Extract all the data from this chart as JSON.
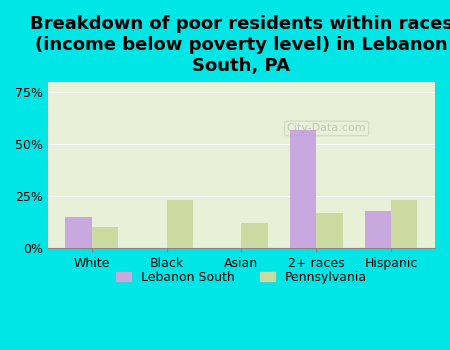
{
  "title": "Breakdown of poor residents within races\n(income below poverty level) in Lebanon\nSouth, PA",
  "categories": [
    "White",
    "Black",
    "Asian",
    "2+ races",
    "Hispanic"
  ],
  "lebanon_south": [
    15,
    0,
    0,
    57,
    18
  ],
  "pennsylvania": [
    10,
    23,
    12,
    17,
    23
  ],
  "lebanon_south_color": "#c9a8e0",
  "pennsylvania_color": "#ccd9a0",
  "background_color": "#00e5e5",
  "plot_bg_color": "#e8f0d8",
  "ylim": [
    0,
    80
  ],
  "yticks": [
    0,
    25,
    50,
    75
  ],
  "ytick_labels": [
    "0%",
    "25%",
    "50%",
    "75%"
  ],
  "bar_width": 0.35,
  "title_fontsize": 13,
  "watermark": "City-Data.com"
}
